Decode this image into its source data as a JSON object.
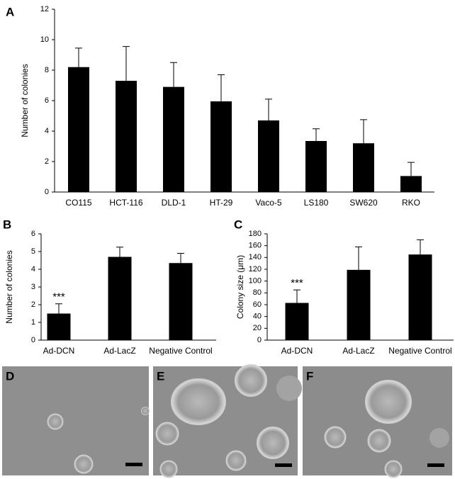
{
  "chart_data": [
    {
      "type": "bar",
      "panel": "A",
      "ylabel": "Number of colonies",
      "categories": [
        "CO115",
        "HCT-116",
        "DLD-1",
        "HT-29",
        "Vaco-5",
        "LS180",
        "SW620",
        "RKO"
      ],
      "values": [
        8.2,
        7.3,
        6.9,
        5.95,
        4.7,
        3.35,
        3.2,
        1.05
      ],
      "errors": [
        1.25,
        2.25,
        1.6,
        1.75,
        1.4,
        0.8,
        1.55,
        0.9
      ],
      "color": "#000000",
      "ylim": [
        0,
        12
      ],
      "yticks": [
        0,
        2,
        4,
        6,
        8,
        10,
        12
      ],
      "grid": false
    },
    {
      "type": "bar",
      "panel": "B",
      "ylabel": "Number of colonies",
      "annotation": "***",
      "categories": [
        "Ad-DCN",
        "Ad-LacZ",
        "Negative Control"
      ],
      "values": [
        1.5,
        4.7,
        4.35
      ],
      "errors": [
        0.55,
        0.55,
        0.55
      ],
      "color": "#000000",
      "ylim": [
        0,
        6
      ],
      "yticks": [
        0,
        1,
        2,
        3,
        4,
        5,
        6
      ],
      "grid": false
    },
    {
      "type": "bar",
      "panel": "C",
      "ylabel": "Colony size (μm)",
      "annotation": "***",
      "categories": [
        "Ad-DCN",
        "Ad-LacZ",
        "Negative Control"
      ],
      "values": [
        63,
        119,
        145
      ],
      "errors": [
        22,
        39,
        25
      ],
      "color": "#000000",
      "ylim": [
        0,
        180
      ],
      "yticks": [
        0,
        20,
        40,
        60,
        80,
        100,
        120,
        140,
        160,
        180
      ],
      "grid": false
    }
  ],
  "image_panels": [
    "D",
    "E",
    "F"
  ]
}
